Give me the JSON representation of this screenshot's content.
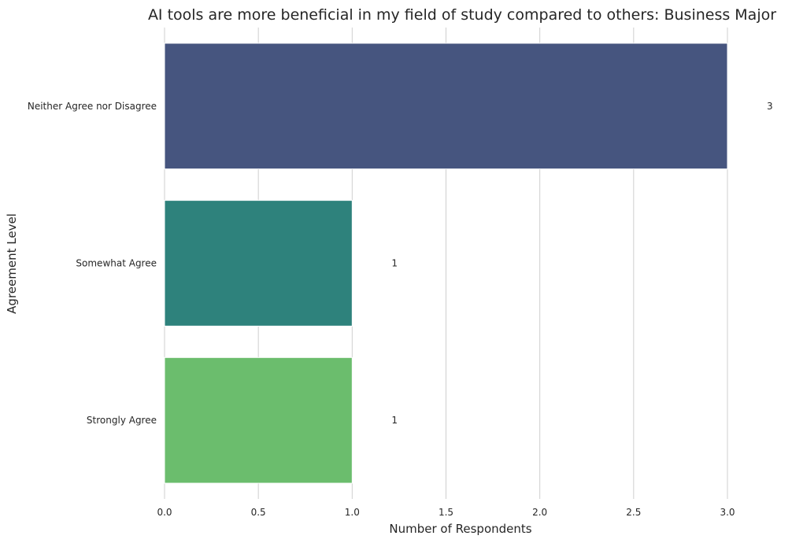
{
  "chart_data": {
    "type": "bar",
    "orientation": "horizontal",
    "title": "AI tools are more beneficial in my field of study compared to others: Business Major",
    "xlabel": "Number of Respondents",
    "ylabel": "Agreement Level",
    "categories": [
      "Neither Agree nor Disagree",
      "Somewhat Agree",
      "Strongly Agree"
    ],
    "values": [
      3,
      1,
      1
    ],
    "data_labels": [
      "3",
      "1",
      "1"
    ],
    "colors": [
      "#46557f",
      "#2e827c",
      "#6bbd6d"
    ],
    "xlim": [
      0,
      3.0
    ],
    "xticks": [
      0,
      0.5,
      1.0,
      1.5,
      2.0,
      2.5,
      3.0
    ],
    "xtick_labels": [
      "0.0",
      "0.5",
      "1.0",
      "1.5",
      "2.0",
      "2.5",
      "3.0"
    ],
    "grid": "vertical",
    "legend": "none"
  }
}
